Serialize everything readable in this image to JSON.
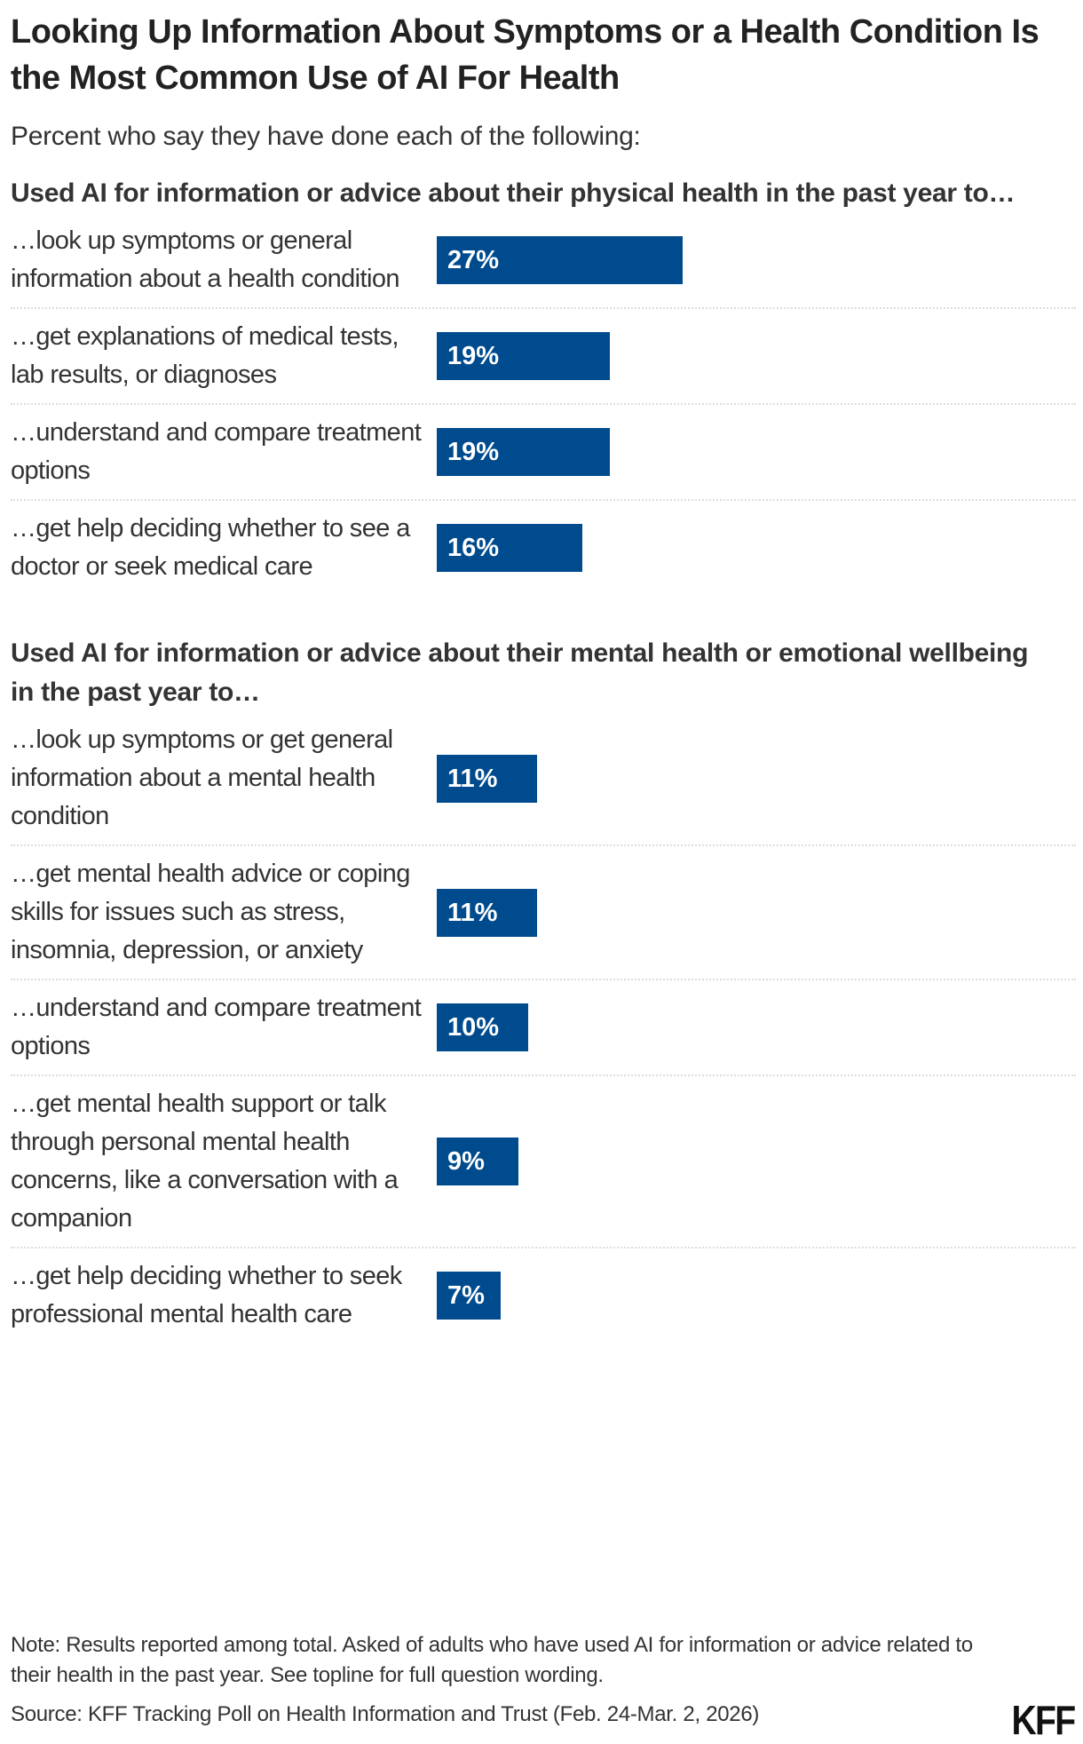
{
  "title": "Looking Up Information About Symptoms or a Health Condition Is the Most Common Use of AI For Health",
  "subtitle": "Percent who say they have done each of the following:",
  "colors": {
    "bar": "#004b8d",
    "bar_text": "#ffffff"
  },
  "chart_data": {
    "type": "bar",
    "orientation": "horizontal",
    "title": "Looking Up Information About Symptoms or a Health Condition Is the Most Common Use of AI For Health",
    "unit": "%",
    "groups": [
      {
        "heading": "Used AI for information or advice about their physical health in the past year to…",
        "items": [
          {
            "label": "…look up symptoms or general information about a health condition",
            "value": 27,
            "value_label": "27%"
          },
          {
            "label": "…get explanations of medical tests, lab results, or diagnoses",
            "value": 19,
            "value_label": "19%"
          },
          {
            "label": "…understand and compare treatment options",
            "value": 19,
            "value_label": "19%"
          },
          {
            "label": "…get help deciding whether to see a doctor or seek medical care",
            "value": 16,
            "value_label": "16%"
          }
        ]
      },
      {
        "heading": "Used AI for information or advice about their mental health or emotional wellbeing in the past year to…",
        "items": [
          {
            "label": "…look up symptoms or get general information about a mental health condition",
            "value": 11,
            "value_label": "11%"
          },
          {
            "label": "…get mental health advice or coping skills for issues such as stress, insomnia, depression, or anxiety",
            "value": 11,
            "value_label": "11%"
          },
          {
            "label": "…understand and compare treatment options",
            "value": 10,
            "value_label": "10%"
          },
          {
            "label": "…get mental health support or talk through personal mental health concerns, like a conversation with a companion",
            "value": 9,
            "value_label": "9%"
          },
          {
            "label": "…get help deciding whether to seek professional mental health care",
            "value": 7,
            "value_label": "7%"
          }
        ]
      }
    ]
  },
  "footer": {
    "note": "Note: Results reported among total. Asked of adults who have used AI for information or advice related to their health in the past year. See topline for full question wording.",
    "source": "Source: KFF Tracking Poll on Health Information and Trust (Feb. 24-Mar. 2, 2026)",
    "logo": "KFF"
  }
}
